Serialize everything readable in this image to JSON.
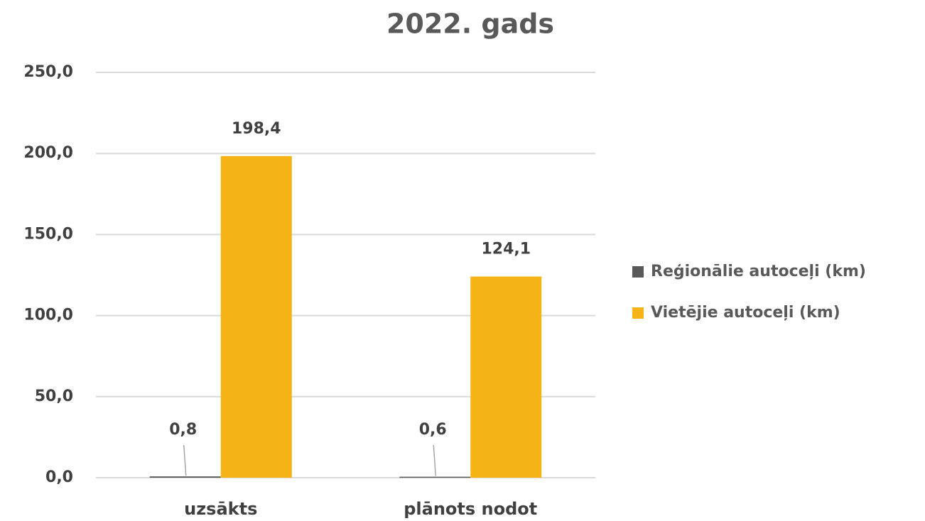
{
  "chart_data": {
    "type": "bar",
    "title": "2022. gads",
    "categories": [
      "uzsākts",
      "plānots nodot"
    ],
    "series": [
      {
        "name": "Reģionālie autoceļi (km)",
        "color": "#595959",
        "values": [
          0.8,
          0.6
        ],
        "value_labels": [
          "0,8",
          "0,6"
        ]
      },
      {
        "name": "Vietējie autoceļi (km)",
        "color": "#f5b316",
        "values": [
          198.4,
          124.1
        ],
        "value_labels": [
          "198,4",
          "124,1"
        ]
      }
    ],
    "ylim": [
      0,
      250
    ],
    "yticks": [
      {
        "value": 0,
        "label": "0,0"
      },
      {
        "value": 50,
        "label": "50,0"
      },
      {
        "value": 100,
        "label": "100,0"
      },
      {
        "value": 150,
        "label": "150,0"
      },
      {
        "value": 200,
        "label": "200,0"
      },
      {
        "value": 250,
        "label": "250,0"
      }
    ],
    "grid": true,
    "legend": "right"
  }
}
